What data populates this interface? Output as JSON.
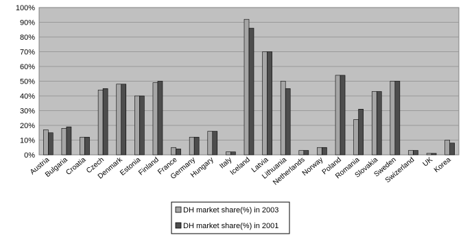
{
  "chart_data": {
    "type": "bar",
    "categories": [
      "Austria",
      "Bulgaria",
      "Croatia",
      "Czech",
      "Denmark",
      "Estonia",
      "Finland",
      "France",
      "Germany",
      "Hungary",
      "Italy",
      "Iceland",
      "Latvia",
      "Lithuania",
      "Netherlands",
      "Norway",
      "Poland",
      "Romania",
      "Slovakia",
      "Sweden",
      "Swizerland",
      "UK",
      "Korea"
    ],
    "series": [
      {
        "name": "DH market share(%) in 2003",
        "color": "#a6a6a6",
        "values": [
          17,
          18,
          12,
          44,
          48,
          40,
          49,
          5,
          12,
          16,
          2,
          92,
          70,
          50,
          3,
          5,
          54,
          24,
          43,
          50,
          3,
          1,
          10
        ]
      },
      {
        "name": "DH market share(%) in 2001",
        "color": "#4d4d4d",
        "values": [
          15,
          19,
          12,
          45,
          48,
          40,
          50,
          4,
          12,
          16,
          2,
          86,
          70,
          45,
          3,
          5,
          54,
          31,
          43,
          50,
          3,
          1,
          8
        ]
      }
    ],
    "yticks": [
      "0%",
      "10%",
      "20%",
      "30%",
      "40%",
      "50%",
      "60%",
      "70%",
      "80%",
      "90%",
      "100%"
    ],
    "ylim": [
      0,
      100
    ],
    "grid": true,
    "plot_background": "#c0c0c0",
    "legend_position": "bottom"
  }
}
